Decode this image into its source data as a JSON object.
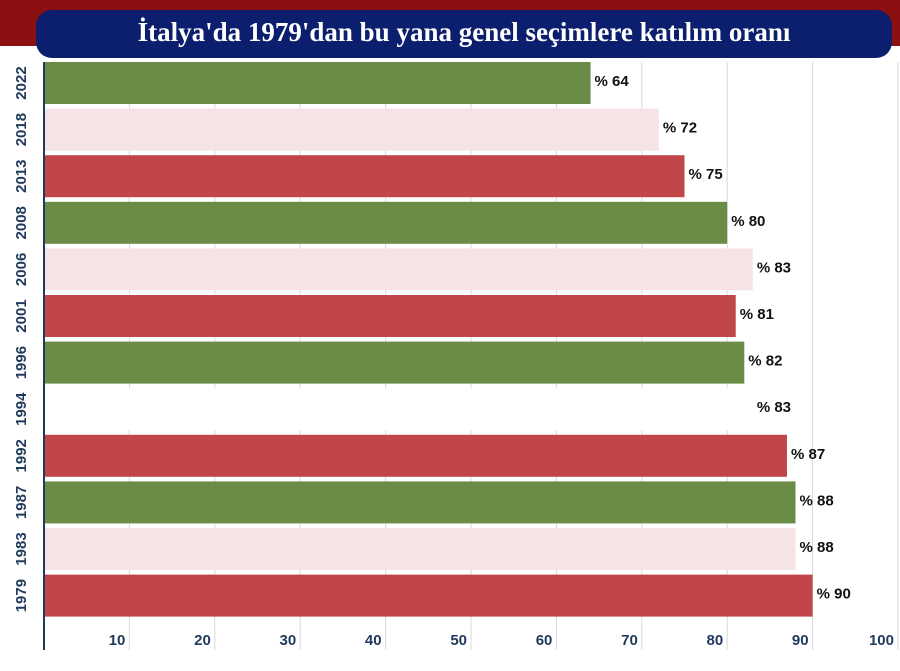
{
  "chart_data": {
    "type": "barh",
    "title": "İtalya'da 1979'dan bu yana genel seçimlere katılım oranı",
    "categories": [
      "2022",
      "2018",
      "2013",
      "2008",
      "2006",
      "2001",
      "1996",
      "1994",
      "1992",
      "1987",
      "1983",
      "1979"
    ],
    "values": [
      64,
      72,
      75,
      80,
      83,
      81,
      82,
      83,
      87,
      88,
      88,
      90
    ],
    "value_labels": [
      "% 64",
      "% 72",
      "% 75",
      "% 80",
      "% 83",
      "% 81",
      "% 82",
      "% 83",
      "% 87",
      "% 88",
      "% 88",
      "% 90"
    ],
    "colors": [
      "#6b8c47",
      "#f5e4e6",
      "#c0464a",
      "#6b8c47",
      "#f5e4e6",
      "#c0464a",
      "#6b8c47",
      "#ffffff",
      "#c0464a",
      "#6b8c47",
      "#f5e4e6",
      "#c0464a"
    ],
    "xlim": [
      0,
      100
    ],
    "xticks": [
      10,
      20,
      30,
      40,
      50,
      60,
      70,
      80,
      90,
      100
    ],
    "grid": true
  }
}
